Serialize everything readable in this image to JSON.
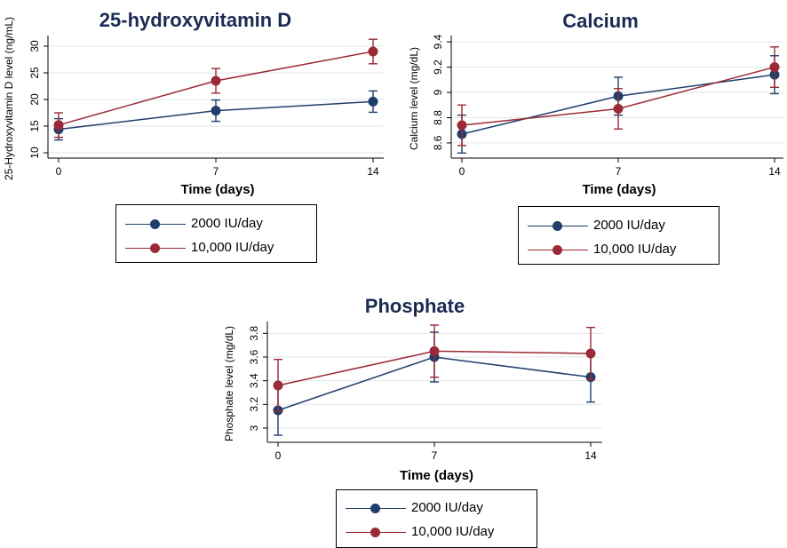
{
  "series_colors": {
    "s2000": "#1f3f6a",
    "s10000": "#9a2a35"
  },
  "legend_labels": [
    "2000 IU/day",
    "10,000 IU/day"
  ],
  "chart_data": [
    {
      "type": "line",
      "title": "25-hydroxyvitamin D",
      "xlabel": "Time (days)",
      "ylabel": "25-Hydroxyvitamin D level (ng/mL)",
      "x": [
        0,
        7,
        14
      ],
      "xticks": [
        "0",
        "7",
        "14"
      ],
      "yticks": [
        "10",
        "15",
        "20",
        "25",
        "30"
      ],
      "ylim": [
        9,
        32
      ],
      "series": [
        {
          "name": "2000 IU/day",
          "values": [
            14.4,
            17.9,
            19.6
          ],
          "err": [
            2.0,
            2.0,
            2.0
          ]
        },
        {
          "name": "10,000 IU/day",
          "values": [
            15.2,
            23.5,
            29.0
          ],
          "err": [
            2.3,
            2.3,
            2.3
          ]
        }
      ]
    },
    {
      "type": "line",
      "title": "Calcium",
      "xlabel": "Time (days)",
      "ylabel": "Calcium  level (mg/dL)",
      "x": [
        0,
        7,
        14
      ],
      "xticks": [
        "0",
        "7",
        "14"
      ],
      "yticks": [
        "8.6",
        "8.8",
        "9",
        "9.2",
        "9.4"
      ],
      "ylim": [
        8.48,
        9.45
      ],
      "series": [
        {
          "name": "2000 IU/day",
          "values": [
            8.67,
            8.97,
            9.14
          ],
          "err": [
            0.15,
            0.15,
            0.15
          ]
        },
        {
          "name": "10,000 IU/day",
          "values": [
            8.74,
            8.87,
            9.2
          ],
          "err": [
            0.16,
            0.16,
            0.16
          ]
        }
      ]
    },
    {
      "type": "line",
      "title": "Phosphate",
      "xlabel": "Time (days)",
      "ylabel": "Phosphate level (mg/dL)",
      "x": [
        0,
        7,
        14
      ],
      "xticks": [
        "0",
        "7",
        "14"
      ],
      "yticks": [
        "3",
        "3.2",
        "3.4",
        "3.6",
        "3.8"
      ],
      "ylim": [
        2.88,
        3.9
      ],
      "series": [
        {
          "name": "2000 IU/day",
          "values": [
            3.15,
            3.6,
            3.43
          ],
          "err": [
            0.21,
            0.21,
            0.21
          ]
        },
        {
          "name": "10,000 IU/day",
          "values": [
            3.36,
            3.65,
            3.63
          ],
          "err": [
            0.22,
            0.22,
            0.22
          ]
        }
      ]
    }
  ]
}
